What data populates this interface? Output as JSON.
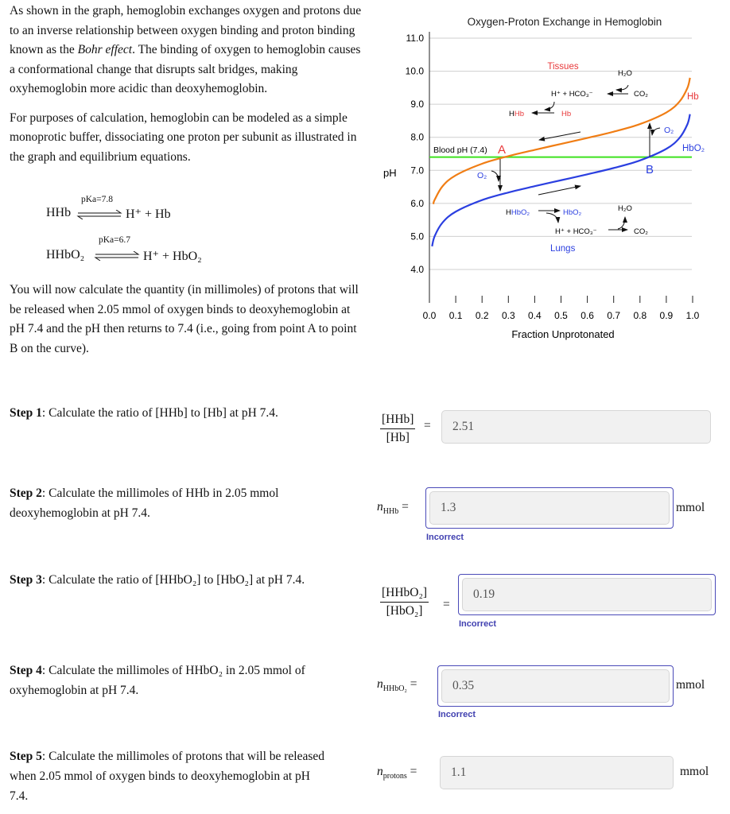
{
  "intro": {
    "p1_a": "As shown in the graph, hemoglobin exchanges oxygen and protons due to an inverse relationship between oxygen binding and proton binding known as the ",
    "p1_em": "Bohr effect",
    "p1_b": ". The binding of oxygen to hemoglobin causes a conformational change that disrupts salt bridges, making oxyhemoglobin more acidic than deoxyhemoglobin.",
    "p2": "For purposes of calculation, hemoglobin can be modeled as a simple monoprotic buffer, dissociating one proton per subunit as illustrated in the graph and equilibrium equations.",
    "p3": "You will now calculate the quantity (in millimoles) of protons that will be released when 2.05 mmol  of oxygen binds to deoxyhemoglobin at pH 7.4 and the pH then returns to 7.4 (i.e., going from point A to point B on the curve)."
  },
  "equations": [
    {
      "left": "HHb",
      "pka": "pKa=7.8",
      "right": "H⁺ + Hb"
    },
    {
      "left": "HHbO₂",
      "pka": "pKa=6.7",
      "right": "H⁺ + HbO₂"
    }
  ],
  "steps": [
    {
      "bold": "Step 1",
      "text": ": Calculate the ratio of [HHb] to [Hb] at pH 7.4.",
      "lhs_num": "[HHb]",
      "lhs_den": "[Hb]",
      "value": "2.51",
      "unit": "",
      "feedback": ""
    },
    {
      "bold": "Step 2",
      "text": ": Calculate the millimoles of HHb in 2.05 mmol deoxyhemoglobin at pH 7.4.",
      "lhs_var": "n",
      "lhs_sub": "HHb",
      "value": "1.3",
      "unit": "mmol",
      "feedback": "Incorrect"
    },
    {
      "bold": "Step 3",
      "text": ": Calculate the ratio of [HHbO₂] to [HbO₂] at pH 7.4.",
      "lhs_num": "[HHbO₂]",
      "lhs_den": "[HbO₂]",
      "value": "0.19",
      "unit": "",
      "feedback": "Incorrect"
    },
    {
      "bold": "Step 4",
      "text": ": Calculate the millimoles of HHbO₂ in 2.05 mmol of oxyhemoglobin at pH 7.4.",
      "lhs_var": "n",
      "lhs_sub": "HHbO₂",
      "value": "0.35",
      "unit": "mmol",
      "feedback": "Incorrect"
    },
    {
      "bold": "Step 5",
      "text": ": Calculate the millimoles of protons that will be released when 2.05 mmol  of oxygen binds to deoxyhemoglobin at pH 7.4.",
      "lhs_var": "n",
      "lhs_sub": "protons",
      "value": "1.1",
      "unit": "mmol",
      "feedback": ""
    }
  ],
  "equals": "=",
  "colors": {
    "hb": "#f07d14",
    "hbo2": "#2b3fe0",
    "blood_ph": "#3de21e",
    "red_label": "#e8383a",
    "feedback": "#4040b0"
  },
  "chart_data": {
    "type": "line",
    "title": "Oxygen-Proton Exchange in Hemoglobin",
    "xlabel": "Fraction Unprotonated",
    "ylabel": "pH",
    "xlim": [
      0,
      1
    ],
    "ylim": [
      4,
      11
    ],
    "xticks": [
      "0.0",
      "0.1",
      "0.2",
      "0.3",
      "0.4",
      "0.5",
      "0.6",
      "0.7",
      "0.8",
      "0.9",
      "1.0"
    ],
    "yticks": [
      "11.0",
      "10.0",
      "9.0",
      "8.0",
      "7.0",
      "6.0",
      "5.0",
      "4.0"
    ],
    "grid": true,
    "series": [
      {
        "name": "Hb",
        "x": [
          0.015,
          0.02,
          0.05,
          0.1,
          0.2,
          0.3,
          0.4,
          0.5,
          0.6,
          0.7,
          0.8,
          0.9,
          0.95,
          0.98,
          0.99
        ],
        "y": [
          5.98,
          6.11,
          6.52,
          6.85,
          7.2,
          7.43,
          7.62,
          7.8,
          7.98,
          8.17,
          8.4,
          8.75,
          9.08,
          9.49,
          9.8
        ]
      },
      {
        "name": "HbO₂",
        "x": [
          0.01,
          0.02,
          0.05,
          0.1,
          0.2,
          0.3,
          0.4,
          0.5,
          0.6,
          0.7,
          0.8,
          0.9,
          0.95,
          0.98,
          0.99
        ],
        "y": [
          4.7,
          5.01,
          5.42,
          5.75,
          6.1,
          6.33,
          6.52,
          6.7,
          6.88,
          7.07,
          7.3,
          7.65,
          7.98,
          8.39,
          8.7
        ]
      }
    ],
    "hline": {
      "label": "Blood pH (7.4)",
      "y": 7.4
    },
    "points": [
      {
        "label": "A",
        "x": 0.28,
        "y": 7.4
      },
      {
        "label": "B",
        "x": 0.83,
        "y": 7.4
      }
    ],
    "annotations": {
      "tissues": "Tissues",
      "h2o_top": "H₂O",
      "h_hco3_top": "H⁺ + HCO₃⁻",
      "co2_top": "CO₂",
      "hhb_h": "H",
      "hhb_hb": "Hb",
      "hb_top": "Hb",
      "o2_b": "O₂",
      "o2_a": "O₂",
      "hhbo2_h": "H",
      "hhbo2_rest": "HbO₂",
      "hbo2_mid": "HbO₂",
      "h_hco3_bot": "H⁺ + HCO₃⁻",
      "co2_bot": "CO₂",
      "h2o_bot": "H₂O",
      "lungs": "Lungs"
    }
  }
}
